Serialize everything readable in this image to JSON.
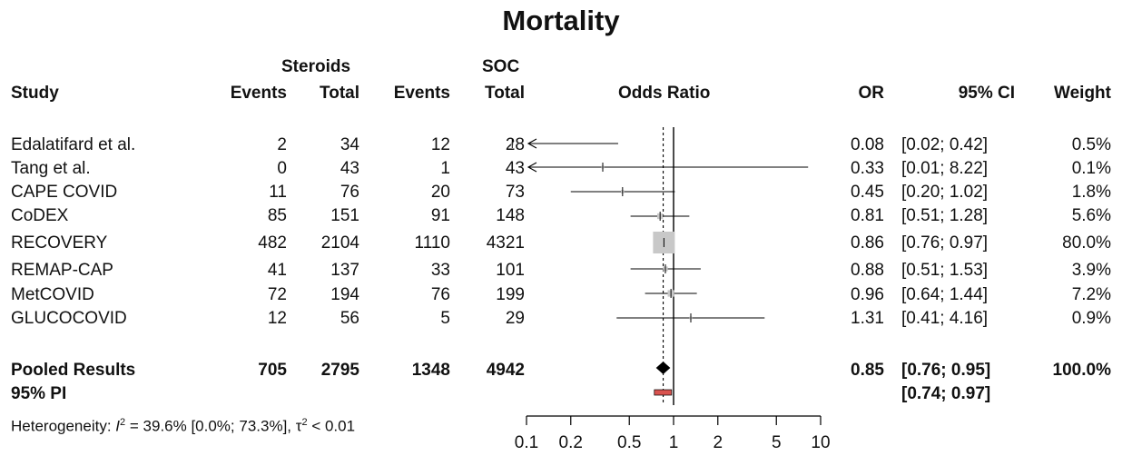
{
  "chart_data": {
    "type": "forest",
    "title": "Mortality",
    "headers": {
      "group_steroids": "Steroids",
      "group_soc": "SOC",
      "study": "Study",
      "events": "Events",
      "total": "Total",
      "soc_total": "Total",
      "odds_ratio": "Odds Ratio",
      "or": "OR",
      "ci": "95% CI",
      "weight": "Weight"
    },
    "studies": [
      {
        "name": "Edalatifard et al.",
        "steroid_events": "2",
        "steroid_total": "34",
        "soc_events": "12",
        "soc_total": "28",
        "or": 0.08,
        "lo": 0.02,
        "hi": 0.42,
        "or_text": "0.08",
        "ci_text": "[0.02; 0.42]",
        "weight_text": "0.5%",
        "weight": 0.5
      },
      {
        "name": "Tang et al.",
        "steroid_events": "0",
        "steroid_total": "43",
        "soc_events": "1",
        "soc_total": "43",
        "or": 0.33,
        "lo": 0.01,
        "hi": 8.22,
        "or_text": "0.33",
        "ci_text": "[0.01; 8.22]",
        "weight_text": "0.1%",
        "weight": 0.1
      },
      {
        "name": "CAPE COVID",
        "steroid_events": "11",
        "steroid_total": "76",
        "soc_events": "20",
        "soc_total": "73",
        "or": 0.45,
        "lo": 0.2,
        "hi": 1.02,
        "or_text": "0.45",
        "ci_text": "[0.20; 1.02]",
        "weight_text": "1.8%",
        "weight": 1.8
      },
      {
        "name": "CoDEX",
        "steroid_events": "85",
        "steroid_total": "151",
        "soc_events": "91",
        "soc_total": "148",
        "or": 0.81,
        "lo": 0.51,
        "hi": 1.28,
        "or_text": "0.81",
        "ci_text": "[0.51; 1.28]",
        "weight_text": "5.6%",
        "weight": 5.6
      },
      {
        "name": "RECOVERY",
        "steroid_events": "482",
        "steroid_total": "2104",
        "soc_events": "1110",
        "soc_total": "4321",
        "or": 0.86,
        "lo": 0.76,
        "hi": 0.97,
        "or_text": "0.86",
        "ci_text": "[0.76; 0.97]",
        "weight_text": "80.0%",
        "weight": 80.0
      },
      {
        "name": "REMAP-CAP",
        "steroid_events": "41",
        "steroid_total": "137",
        "soc_events": "33",
        "soc_total": "101",
        "or": 0.88,
        "lo": 0.51,
        "hi": 1.53,
        "or_text": "0.88",
        "ci_text": "[0.51; 1.53]",
        "weight_text": "3.9%",
        "weight": 3.9
      },
      {
        "name": "MetCOVID",
        "steroid_events": "72",
        "steroid_total": "194",
        "soc_events": "76",
        "soc_total": "199",
        "or": 0.96,
        "lo": 0.64,
        "hi": 1.44,
        "or_text": "0.96",
        "ci_text": "[0.64; 1.44]",
        "weight_text": "7.2%",
        "weight": 7.2
      },
      {
        "name": "GLUCOCOVID",
        "steroid_events": "12",
        "steroid_total": "56",
        "soc_events": "5",
        "soc_total": "29",
        "or": 1.31,
        "lo": 0.41,
        "hi": 4.16,
        "or_text": "1.31",
        "ci_text": "[0.41; 4.16]",
        "weight_text": "0.9%",
        "weight": 0.9
      }
    ],
    "pooled": {
      "label": "Pooled Results",
      "steroid_events": "705",
      "steroid_total": "2795",
      "soc_events": "1348",
      "soc_total": "4942",
      "or": 0.85,
      "lo": 0.76,
      "hi": 0.95,
      "or_text": "0.85",
      "ci_text": "[0.76; 0.95]",
      "weight_text": "100.0%"
    },
    "prediction_interval": {
      "label": "95% PI",
      "lo": 0.74,
      "hi": 0.97,
      "ci_text": "[0.74; 0.97]"
    },
    "heterogeneity": {
      "prefix": "Heterogeneity: ",
      "i2_symbol": "I",
      "i2_exp": "2",
      "i2_text": " = 39.6% [0.0%; 73.3%], ",
      "tau_symbol": "τ",
      "tau_exp": "2",
      "tau_text": " < 0.01"
    },
    "x_axis": {
      "scale": "log",
      "ticks": [
        0.1,
        0.2,
        0.5,
        1,
        2,
        5,
        10
      ],
      "tick_labels": [
        "0.1",
        "0.2",
        "0.5",
        "1",
        "2",
        "5",
        "10"
      ],
      "xlim": [
        0.1,
        10
      ]
    },
    "null_line": 1,
    "pooled_reference_line": 0.85,
    "colors": {
      "box": "#c8c8c8",
      "diamond": "#000000",
      "pi": "#d9534f",
      "text": "#111111"
    }
  }
}
